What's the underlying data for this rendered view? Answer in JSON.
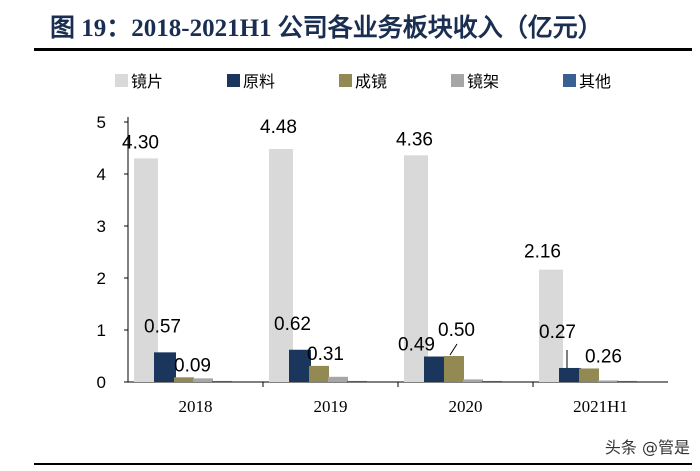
{
  "title": "图 19：2018-2021H1 公司各业务板块收入（亿元）",
  "watermark": "头条 @管是",
  "chart_data": {
    "type": "bar",
    "title": "图 19：2018-2021H1 公司各业务板块收入（亿元）",
    "categories": [
      "2018",
      "2019",
      "2020",
      "2021H1"
    ],
    "series": [
      {
        "name": "镜片",
        "color": "#d9d9d9",
        "values": [
          4.3,
          4.48,
          4.36,
          2.16
        ],
        "labels": [
          "4.30",
          "4.48",
          "4.36",
          "2.16"
        ]
      },
      {
        "name": "原料",
        "color": "#1b365d",
        "values": [
          0.57,
          0.62,
          0.49,
          0.27
        ],
        "labels": [
          "0.57",
          "0.62",
          "0.49",
          "0.27"
        ]
      },
      {
        "name": "成镜",
        "color": "#938953",
        "values": [
          0.09,
          0.31,
          0.5,
          0.26
        ],
        "labels": [
          "0.09",
          "0.31",
          "0.50",
          "0.26"
        ]
      },
      {
        "name": "镜架",
        "color": "#a6a6a6",
        "values": [
          0.07,
          0.1,
          0.05,
          0.03
        ],
        "labels": []
      },
      {
        "name": "其他",
        "color": "#3a5f92",
        "values": [
          0.02,
          0.02,
          0.02,
          0.02
        ],
        "labels": []
      }
    ],
    "ylim": [
      0,
      5
    ],
    "yticks": [
      "0",
      "1",
      "2",
      "3",
      "4",
      "5"
    ],
    "legend": "top",
    "grid": false
  }
}
